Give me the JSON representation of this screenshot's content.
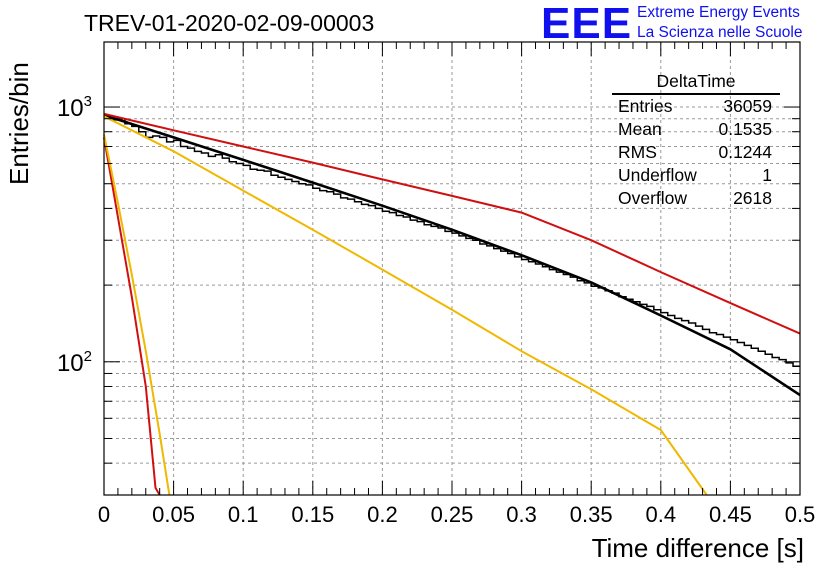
{
  "header": {
    "title": "TREV-01-2020-02-09-00003",
    "logo": "EEE",
    "logo_line1": "Extreme Energy Events",
    "logo_line2": "La Scienza nelle Scuole"
  },
  "stats_box": {
    "name": "DeltaTime",
    "rows": [
      {
        "label": "Entries",
        "value": "36059"
      },
      {
        "label": "Mean",
        "value": "0.1535"
      },
      {
        "label": "RMS",
        "value": "0.1244"
      },
      {
        "label": "Underflow",
        "value": "1"
      },
      {
        "label": "Overflow",
        "value": "2618"
      }
    ]
  },
  "colors": {
    "histogram": "#000000",
    "fit": "#000000",
    "red_curve": "#d01010",
    "yellow_curve": "#f0b800",
    "grid": "#9a9a9a",
    "logo": "#1010ee"
  },
  "chart_data": {
    "type": "line",
    "xlabel": "Time difference [s]",
    "ylabel": "Entries/bin",
    "xlim": [
      0,
      0.5
    ],
    "ylim": [
      30,
      1800
    ],
    "yscale": "log",
    "grid": true,
    "x_ticks": [
      {
        "value": 0,
        "label": "0"
      },
      {
        "value": 0.05,
        "label": "0.05"
      },
      {
        "value": 0.1,
        "label": "0.1"
      },
      {
        "value": 0.15,
        "label": "0.15"
      },
      {
        "value": 0.2,
        "label": "0.2"
      },
      {
        "value": 0.25,
        "label": "0.25"
      },
      {
        "value": 0.3,
        "label": "0.3"
      },
      {
        "value": 0.35,
        "label": "0.35"
      },
      {
        "value": 0.4,
        "label": "0.4"
      },
      {
        "value": 0.45,
        "label": "0.45"
      },
      {
        "value": 0.5,
        "label": "0.5"
      }
    ],
    "y_ticks": [
      {
        "value": 100,
        "base": "10",
        "exp": "2"
      },
      {
        "value": 1000,
        "base": "10",
        "exp": "3"
      }
    ],
    "histogram": {
      "bin_width": 0.005,
      "values": [
        920,
        890,
        900,
        860,
        840,
        800,
        760,
        770,
        760,
        730,
        740,
        700,
        690,
        670,
        660,
        640,
        650,
        630,
        610,
        600,
        590,
        570,
        565,
        560,
        540,
        530,
        520,
        510,
        500,
        495,
        480,
        470,
        465,
        455,
        440,
        435,
        425,
        415,
        410,
        400,
        390,
        385,
        375,
        370,
        360,
        355,
        345,
        340,
        335,
        325,
        320,
        312,
        305,
        300,
        290,
        285,
        278,
        272,
        266,
        258,
        252,
        247,
        242,
        236,
        230,
        225,
        220,
        215,
        208,
        204,
        198,
        195,
        190,
        186,
        180,
        176,
        172,
        168,
        165,
        160,
        156,
        152,
        148,
        145,
        142,
        138,
        134,
        130,
        128,
        125,
        122,
        119,
        116,
        113,
        110,
        107,
        104,
        102,
        99,
        96
      ]
    },
    "series": [
      {
        "role": "fit",
        "points": [
          [
            0,
            930
          ],
          [
            0.05,
            760
          ],
          [
            0.1,
            620
          ],
          [
            0.15,
            505
          ],
          [
            0.2,
            410
          ],
          [
            0.25,
            330
          ],
          [
            0.3,
            262
          ],
          [
            0.35,
            205
          ],
          [
            0.4,
            152
          ],
          [
            0.45,
            112
          ],
          [
            0.5,
            74
          ]
        ]
      },
      {
        "role": "red-upper",
        "points": [
          [
            0,
            940
          ],
          [
            0.05,
            810
          ],
          [
            0.1,
            700
          ],
          [
            0.15,
            605
          ],
          [
            0.2,
            520
          ],
          [
            0.25,
            448
          ],
          [
            0.3,
            385
          ],
          [
            0.35,
            300
          ],
          [
            0.4,
            225
          ],
          [
            0.45,
            170
          ],
          [
            0.5,
            129
          ]
        ]
      },
      {
        "role": "yellow-slope",
        "points": [
          [
            0,
            920
          ],
          [
            0.05,
            670
          ],
          [
            0.1,
            470
          ],
          [
            0.15,
            330
          ],
          [
            0.2,
            230
          ],
          [
            0.25,
            160
          ],
          [
            0.3,
            110
          ],
          [
            0.35,
            78
          ],
          [
            0.4,
            54
          ],
          [
            0.433,
            30
          ]
        ]
      },
      {
        "role": "red-steep",
        "points": [
          [
            0,
            760
          ],
          [
            0.01,
            370
          ],
          [
            0.02,
            180
          ],
          [
            0.03,
            80
          ],
          [
            0.037,
            32
          ],
          [
            0.04,
            30
          ]
        ]
      },
      {
        "role": "yellow-steep",
        "points": [
          [
            0,
            780
          ],
          [
            0.01,
            420
          ],
          [
            0.02,
            220
          ],
          [
            0.03,
            110
          ],
          [
            0.04,
            52
          ],
          [
            0.047,
            30
          ]
        ]
      }
    ]
  }
}
